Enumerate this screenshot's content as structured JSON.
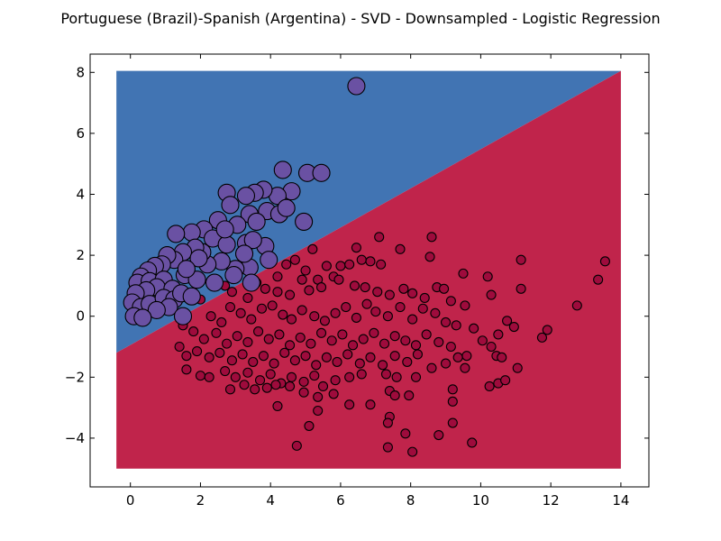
{
  "chart_data": {
    "type": "scatter",
    "title": "Portuguese (Brazil)-Spanish (Argentina) - SVD - Downsampled - Logistic Regression",
    "xlabel": "",
    "ylabel": "",
    "xlim": [
      -1.15,
      14.8
    ],
    "ylim": [
      -5.6,
      8.6
    ],
    "x_ticks": [
      0,
      2,
      4,
      6,
      8,
      10,
      12,
      14
    ],
    "y_ticks": [
      -4,
      -2,
      0,
      2,
      4,
      6,
      8
    ],
    "x_tick_labels": [
      "0",
      "2",
      "4",
      "6",
      "8",
      "10",
      "12",
      "14"
    ],
    "y_tick_labels": [
      "−4",
      "−2",
      "0",
      "2",
      "4",
      "6",
      "8"
    ],
    "grid": false,
    "legend": "none",
    "decision_region": {
      "x_range": [
        -0.4,
        14
      ],
      "y_range": [
        -5,
        8.05
      ],
      "boundary_line": {
        "x": [
          -0.4,
          14
        ],
        "y": [
          -1.2,
          8.05
        ]
      },
      "upper_color": "#4174b3",
      "lower_color": "#c0244b"
    },
    "series": [
      {
        "color": "#6a51a3",
        "marker_size": "large",
        "points": [
          [
            6.45,
            7.55
          ],
          [
            5.05,
            4.7
          ],
          [
            5.45,
            4.7
          ],
          [
            4.35,
            4.8
          ],
          [
            4.6,
            4.1
          ],
          [
            4.2,
            3.95
          ],
          [
            3.8,
            4.15
          ],
          [
            3.55,
            4.05
          ],
          [
            3.3,
            3.95
          ],
          [
            2.75,
            4.05
          ],
          [
            2.85,
            3.65
          ],
          [
            3.4,
            3.35
          ],
          [
            3.9,
            3.45
          ],
          [
            4.25,
            3.35
          ],
          [
            4.45,
            3.55
          ],
          [
            4.95,
            3.1
          ],
          [
            3.6,
            3.1
          ],
          [
            3.05,
            3.0
          ],
          [
            2.5,
            3.15
          ],
          [
            2.1,
            2.85
          ],
          [
            1.75,
            2.75
          ],
          [
            1.3,
            2.7
          ],
          [
            2.35,
            2.55
          ],
          [
            2.75,
            2.35
          ],
          [
            3.3,
            2.4
          ],
          [
            3.85,
            2.3
          ],
          [
            3.5,
            2.5
          ],
          [
            3.95,
            1.85
          ],
          [
            3.4,
            1.6
          ],
          [
            3.0,
            1.55
          ],
          [
            2.6,
            1.8
          ],
          [
            2.2,
            1.7
          ],
          [
            2.05,
            2.1
          ],
          [
            1.85,
            2.25
          ],
          [
            1.5,
            2.1
          ],
          [
            1.25,
            1.85
          ],
          [
            1.05,
            2.0
          ],
          [
            0.9,
            1.7
          ],
          [
            0.7,
            1.65
          ],
          [
            0.5,
            1.5
          ],
          [
            0.3,
            1.3
          ],
          [
            0.2,
            1.1
          ],
          [
            0.55,
            1.15
          ],
          [
            0.95,
            1.2
          ],
          [
            1.55,
            1.35
          ],
          [
            1.9,
            1.2
          ],
          [
            2.4,
            1.1
          ],
          [
            0.75,
            0.95
          ],
          [
            1.2,
            0.9
          ],
          [
            0.45,
            0.85
          ],
          [
            0.15,
            0.75
          ],
          [
            0.05,
            0.45
          ],
          [
            0.3,
            0.3
          ],
          [
            0.55,
            0.4
          ],
          [
            0.95,
            0.6
          ],
          [
            1.25,
            0.55
          ],
          [
            1.45,
            0.75
          ],
          [
            1.1,
            0.3
          ],
          [
            0.75,
            0.2
          ],
          [
            0.1,
            0.0
          ],
          [
            0.35,
            -0.05
          ],
          [
            1.5,
            0.0
          ],
          [
            1.75,
            0.65
          ],
          [
            3.45,
            1.1
          ],
          [
            2.95,
            1.35
          ],
          [
            3.25,
            2.05
          ],
          [
            2.7,
            2.85
          ],
          [
            1.95,
            1.9
          ],
          [
            1.6,
            1.55
          ]
        ]
      },
      {
        "color": "#9e0b3c",
        "marker_size": "small",
        "points": [
          [
            5.2,
            2.2
          ],
          [
            6.45,
            2.25
          ],
          [
            7.1,
            2.6
          ],
          [
            7.7,
            2.2
          ],
          [
            8.6,
            2.6
          ],
          [
            8.55,
            1.95
          ],
          [
            4.05,
            1.85
          ],
          [
            4.7,
            1.85
          ],
          [
            4.45,
            1.7
          ],
          [
            5.0,
            1.5
          ],
          [
            5.6,
            1.65
          ],
          [
            6.0,
            1.65
          ],
          [
            6.25,
            1.7
          ],
          [
            6.6,
            1.85
          ],
          [
            6.85,
            1.8
          ],
          [
            7.15,
            1.7
          ],
          [
            5.8,
            1.3
          ],
          [
            5.35,
            1.2
          ],
          [
            4.9,
            1.2
          ],
          [
            4.2,
            1.3
          ],
          [
            3.6,
            1.1
          ],
          [
            2.7,
            1.0
          ],
          [
            2.9,
            0.8
          ],
          [
            3.35,
            0.6
          ],
          [
            3.85,
            0.9
          ],
          [
            4.2,
            0.8
          ],
          [
            4.55,
            0.7
          ],
          [
            5.1,
            0.85
          ],
          [
            5.45,
            0.95
          ],
          [
            5.95,
            1.2
          ],
          [
            6.4,
            1.0
          ],
          [
            6.7,
            0.95
          ],
          [
            7.05,
            0.8
          ],
          [
            7.4,
            0.7
          ],
          [
            7.8,
            0.9
          ],
          [
            8.05,
            0.75
          ],
          [
            8.4,
            0.6
          ],
          [
            8.75,
            0.95
          ],
          [
            8.95,
            0.9
          ],
          [
            9.15,
            0.5
          ],
          [
            9.55,
            0.35
          ],
          [
            9.5,
            1.4
          ],
          [
            10.2,
            1.3
          ],
          [
            10.3,
            0.7
          ],
          [
            11.15,
            1.85
          ],
          [
            11.15,
            0.9
          ],
          [
            12.75,
            0.35
          ],
          [
            13.35,
            1.2
          ],
          [
            13.55,
            1.8
          ],
          [
            2.0,
            0.55
          ],
          [
            2.3,
            0.0
          ],
          [
            2.6,
            -0.2
          ],
          [
            2.85,
            0.3
          ],
          [
            3.15,
            0.1
          ],
          [
            3.45,
            -0.1
          ],
          [
            3.75,
            0.25
          ],
          [
            4.05,
            0.35
          ],
          [
            4.35,
            0.05
          ],
          [
            4.6,
            -0.1
          ],
          [
            4.9,
            0.2
          ],
          [
            5.25,
            0.0
          ],
          [
            5.55,
            -0.15
          ],
          [
            5.85,
            0.1
          ],
          [
            6.15,
            0.3
          ],
          [
            6.45,
            -0.05
          ],
          [
            6.75,
            0.4
          ],
          [
            7.0,
            0.15
          ],
          [
            7.35,
            0.0
          ],
          [
            7.7,
            0.3
          ],
          [
            8.05,
            -0.1
          ],
          [
            8.35,
            0.25
          ],
          [
            8.7,
            0.1
          ],
          [
            9.0,
            -0.2
          ],
          [
            9.3,
            -0.3
          ],
          [
            9.8,
            -0.4
          ],
          [
            10.05,
            -0.8
          ],
          [
            10.5,
            -0.6
          ],
          [
            10.75,
            -0.15
          ],
          [
            10.95,
            -0.35
          ],
          [
            11.75,
            -0.7
          ],
          [
            11.9,
            -0.45
          ],
          [
            1.5,
            -0.3
          ],
          [
            1.8,
            -0.5
          ],
          [
            2.1,
            -0.75
          ],
          [
            2.45,
            -0.55
          ],
          [
            2.75,
            -0.9
          ],
          [
            3.05,
            -0.65
          ],
          [
            3.35,
            -0.85
          ],
          [
            3.65,
            -0.5
          ],
          [
            3.95,
            -0.75
          ],
          [
            4.25,
            -0.6
          ],
          [
            4.55,
            -0.95
          ],
          [
            4.85,
            -0.7
          ],
          [
            5.15,
            -0.9
          ],
          [
            5.45,
            -0.55
          ],
          [
            5.75,
            -0.8
          ],
          [
            6.05,
            -0.6
          ],
          [
            6.35,
            -0.95
          ],
          [
            6.65,
            -0.75
          ],
          [
            6.95,
            -0.55
          ],
          [
            7.25,
            -0.9
          ],
          [
            7.55,
            -0.65
          ],
          [
            7.85,
            -0.8
          ],
          [
            8.15,
            -0.95
          ],
          [
            8.45,
            -0.6
          ],
          [
            8.8,
            -0.85
          ],
          [
            9.15,
            -1.0
          ],
          [
            9.6,
            -1.3
          ],
          [
            10.3,
            -1.0
          ],
          [
            10.45,
            -1.3
          ],
          [
            1.4,
            -1.0
          ],
          [
            1.6,
            -1.3
          ],
          [
            1.9,
            -1.15
          ],
          [
            2.25,
            -1.35
          ],
          [
            2.55,
            -1.2
          ],
          [
            2.9,
            -1.45
          ],
          [
            3.2,
            -1.25
          ],
          [
            3.5,
            -1.5
          ],
          [
            3.8,
            -1.3
          ],
          [
            4.1,
            -1.55
          ],
          [
            4.4,
            -1.2
          ],
          [
            4.7,
            -1.45
          ],
          [
            5.0,
            -1.3
          ],
          [
            5.3,
            -1.6
          ],
          [
            5.6,
            -1.35
          ],
          [
            5.9,
            -1.5
          ],
          [
            6.2,
            -1.25
          ],
          [
            6.55,
            -1.55
          ],
          [
            6.85,
            -1.35
          ],
          [
            7.2,
            -1.6
          ],
          [
            7.55,
            -1.3
          ],
          [
            7.9,
            -1.5
          ],
          [
            8.2,
            -1.25
          ],
          [
            8.6,
            -1.7
          ],
          [
            9.0,
            -1.55
          ],
          [
            9.35,
            -1.35
          ],
          [
            9.55,
            -1.7
          ],
          [
            10.6,
            -1.35
          ],
          [
            10.5,
            -2.2
          ],
          [
            10.7,
            -2.1
          ],
          [
            11.05,
            -1.7
          ],
          [
            1.6,
            -1.75
          ],
          [
            2.0,
            -1.95
          ],
          [
            2.25,
            -2.0
          ],
          [
            2.7,
            -1.8
          ],
          [
            3.0,
            -2.0
          ],
          [
            3.35,
            -1.85
          ],
          [
            3.7,
            -2.1
          ],
          [
            4.0,
            -1.9
          ],
          [
            4.3,
            -2.2
          ],
          [
            4.6,
            -2.0
          ],
          [
            4.95,
            -2.15
          ],
          [
            5.25,
            -1.95
          ],
          [
            5.5,
            -2.3
          ],
          [
            5.85,
            -2.1
          ],
          [
            6.25,
            -2.0
          ],
          [
            6.6,
            -1.9
          ],
          [
            7.3,
            -1.9
          ],
          [
            7.6,
            -2.0
          ],
          [
            8.15,
            -2.0
          ],
          [
            9.2,
            -2.4
          ],
          [
            9.2,
            -2.8
          ],
          [
            10.25,
            -2.3
          ],
          [
            2.85,
            -2.4
          ],
          [
            3.25,
            -2.25
          ],
          [
            3.55,
            -2.4
          ],
          [
            3.9,
            -2.35
          ],
          [
            4.15,
            -2.25
          ],
          [
            4.55,
            -2.3
          ],
          [
            4.95,
            -2.5
          ],
          [
            5.35,
            -2.65
          ],
          [
            5.8,
            -2.55
          ],
          [
            6.25,
            -2.9
          ],
          [
            6.85,
            -2.9
          ],
          [
            7.4,
            -2.45
          ],
          [
            7.55,
            -2.6
          ],
          [
            7.95,
            -2.6
          ],
          [
            4.2,
            -2.95
          ],
          [
            5.35,
            -3.1
          ],
          [
            5.1,
            -3.6
          ],
          [
            7.4,
            -3.3
          ],
          [
            7.35,
            -3.5
          ],
          [
            9.2,
            -3.5
          ],
          [
            7.85,
            -3.85
          ],
          [
            8.8,
            -3.9
          ],
          [
            9.75,
            -4.15
          ],
          [
            7.35,
            -4.3
          ],
          [
            8.05,
            -4.45
          ],
          [
            4.75,
            -4.25
          ]
        ]
      }
    ]
  }
}
